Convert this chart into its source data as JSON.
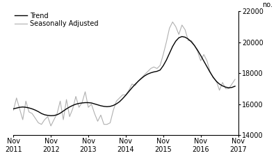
{
  "ylabel_right": "no.",
  "ylim": [
    14000,
    22000
  ],
  "yticks": [
    14000,
    16000,
    18000,
    20000,
    22000
  ],
  "xlabel_years": [
    "Nov\n2011",
    "Nov\n2012",
    "Nov\n2013",
    "Nov\n2014",
    "Nov\n2015",
    "Nov\n2016",
    "Nov\n2017"
  ],
  "x_tick_positions": [
    0,
    12,
    24,
    36,
    48,
    60,
    72
  ],
  "legend_labels": [
    "Trend",
    "Seasonally Adjusted"
  ],
  "trend_color": "#000000",
  "seasonal_color": "#b0b0b0",
  "trend_linewidth": 1.0,
  "seasonal_linewidth": 0.8,
  "background_color": "#ffffff",
  "trend_data": [
    15700,
    15750,
    15800,
    15820,
    15800,
    15760,
    15700,
    15620,
    15520,
    15400,
    15320,
    15280,
    15260,
    15270,
    15320,
    15420,
    15560,
    15700,
    15820,
    15920,
    16000,
    16050,
    16080,
    16100,
    16100,
    16080,
    16020,
    15960,
    15900,
    15860,
    15840,
    15860,
    15920,
    16020,
    16160,
    16360,
    16580,
    16820,
    17060,
    17280,
    17480,
    17660,
    17820,
    17940,
    18020,
    18080,
    18120,
    18200,
    18480,
    18840,
    19280,
    19720,
    20060,
    20280,
    20360,
    20320,
    20200,
    20020,
    19780,
    19480,
    19140,
    18780,
    18420,
    18060,
    17740,
    17480,
    17300,
    17180,
    17100,
    17060,
    17080,
    17160
  ],
  "seasonal_data": [
    15600,
    16400,
    15700,
    15000,
    16200,
    15500,
    15400,
    15100,
    14800,
    14700,
    15000,
    15200,
    14600,
    15000,
    15400,
    16200,
    15000,
    16300,
    15200,
    15700,
    16500,
    15800,
    16100,
    16800,
    15800,
    16000,
    15400,
    14900,
    15300,
    14700,
    14700,
    14800,
    15600,
    16200,
    16400,
    16600,
    16600,
    16900,
    17300,
    17200,
    17500,
    17700,
    17900,
    18100,
    18300,
    18400,
    18300,
    18500,
    19200,
    20000,
    20900,
    21300,
    21000,
    20500,
    21100,
    20800,
    20100,
    20100,
    19800,
    19400,
    18800,
    19200,
    18800,
    18100,
    17700,
    17500,
    16900,
    17400,
    17000,
    17000,
    17300,
    17600
  ]
}
